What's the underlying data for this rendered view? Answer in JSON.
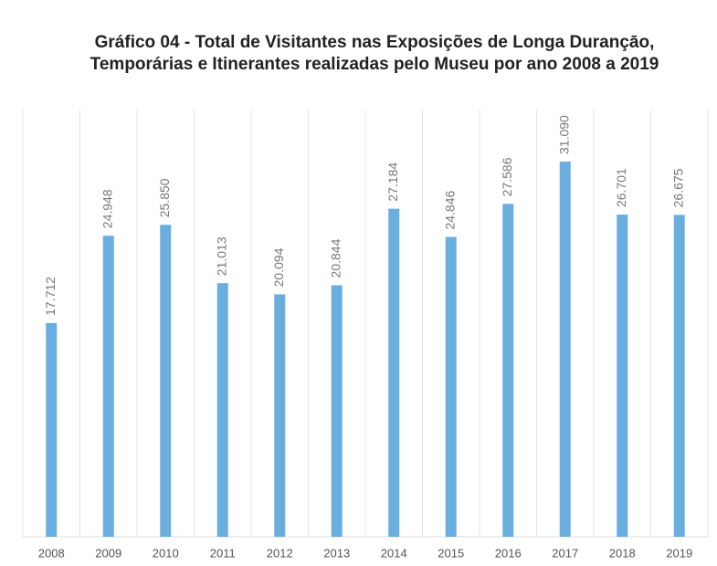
{
  "chart_data": {
    "type": "bar",
    "title": [
      "Gráfico 04 - Total de Visitantes nas Exposições de Longa Durançāo,",
      "Temporárias e Itinerantes realizadas pelo Museu por ano 2008 a 2019"
    ],
    "categories": [
      "2008",
      "2009",
      "2010",
      "2011",
      "2012",
      "2013",
      "2014",
      "2015",
      "2016",
      "2017",
      "2018",
      "2019"
    ],
    "values": [
      17712,
      24948,
      25850,
      21013,
      20094,
      20844,
      27184,
      24846,
      27586,
      31090,
      26701,
      26675
    ],
    "value_labels": [
      "17.712",
      "24.948",
      "25.850",
      "21.013",
      "20.094",
      "20.844",
      "27.184",
      "24.846",
      "27.586",
      "31.090",
      "26.701",
      "26.675"
    ],
    "color": "#6aaee0",
    "grid": true
  }
}
